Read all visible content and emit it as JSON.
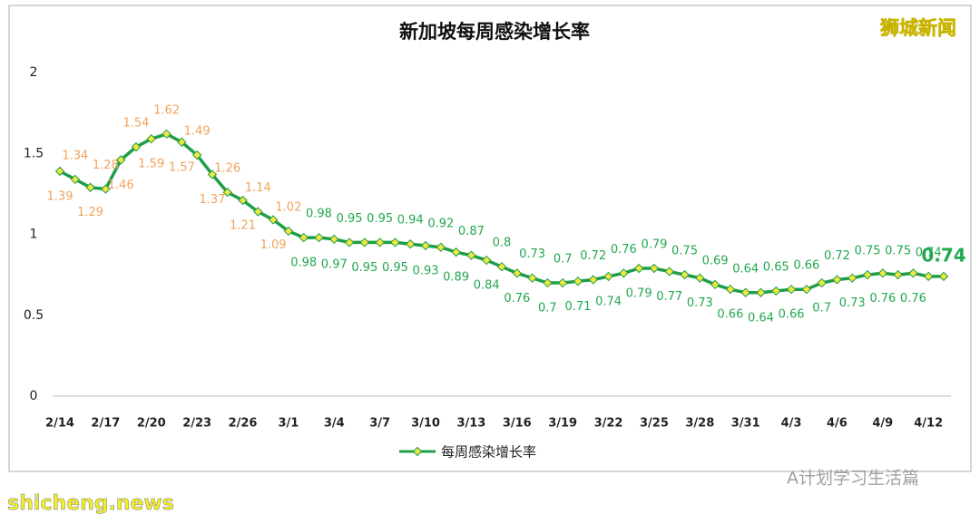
{
  "chart_data": {
    "type": "line",
    "title": "新加坡每周感染增长率",
    "categories": [
      "2/14",
      null,
      null,
      "2/17",
      null,
      null,
      "2/20",
      null,
      null,
      "2/23",
      null,
      null,
      "2/26",
      null,
      null,
      "3/1",
      null,
      null,
      "3/4",
      null,
      null,
      "3/7",
      null,
      null,
      "3/10",
      null,
      null,
      "3/13",
      null,
      null,
      "3/16",
      null,
      null,
      "3/19",
      null,
      null,
      "3/22",
      null,
      null,
      "3/25",
      null,
      null,
      "3/28",
      null,
      null,
      "3/31",
      null,
      null,
      "4/3",
      null,
      null,
      "4/6",
      null,
      null,
      "4/9",
      null,
      null,
      "4/12",
      null
    ],
    "series": [
      {
        "name": "每周感染增长率",
        "color": "#1f9e48",
        "marker_color": "#f2e640",
        "values": [
          1.39,
          1.34,
          1.29,
          1.28,
          1.46,
          1.54,
          1.59,
          1.62,
          1.57,
          1.49,
          1.37,
          1.26,
          1.21,
          1.14,
          1.09,
          1.02,
          0.98,
          0.98,
          0.97,
          0.95,
          0.95,
          0.95,
          0.95,
          0.94,
          0.93,
          0.92,
          0.89,
          0.87,
          0.84,
          0.8,
          0.76,
          0.73,
          0.7,
          0.7,
          0.71,
          0.72,
          0.74,
          0.76,
          0.79,
          0.79,
          0.77,
          0.75,
          0.73,
          0.69,
          0.66,
          0.64,
          0.64,
          0.65,
          0.66,
          0.66,
          0.7,
          0.72,
          0.73,
          0.75,
          0.76,
          0.75,
          0.76,
          0.74,
          0.74
        ]
      }
    ],
    "ylim": [
      0,
      2
    ],
    "yticks": [
      0,
      0.5,
      1,
      1.5,
      2
    ],
    "grid": false,
    "legend": "bottom",
    "label_colors": [
      "#f0a35a",
      "#22a84f"
    ]
  },
  "overlay": {
    "brand": "狮城新闻",
    "wechat": "A计划学习生活篇",
    "site": "shicheng.news"
  }
}
